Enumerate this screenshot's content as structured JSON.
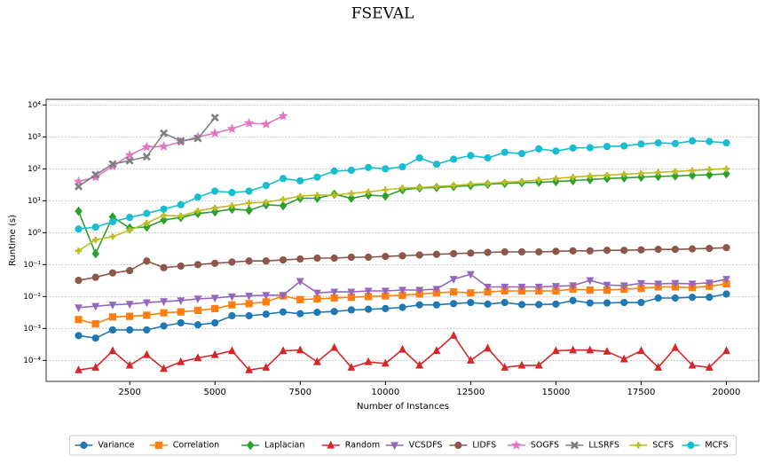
{
  "chart_data": {
    "type": "line",
    "title": "FSEVAL",
    "xlabel": "Number of Instances",
    "ylabel": "Runtime (s)",
    "x": [
      1000,
      1500,
      2000,
      2500,
      3000,
      3500,
      4000,
      4500,
      5000,
      5500,
      6000,
      6500,
      7000,
      7500,
      8000,
      8500,
      9000,
      9500,
      10000,
      10500,
      11000,
      11500,
      12000,
      12500,
      13000,
      13500,
      14000,
      14500,
      15000,
      15500,
      16000,
      16500,
      17000,
      17500,
      18000,
      18500,
      19000,
      19500,
      20000
    ],
    "xlim": [
      50,
      20950
    ],
    "xticks": [
      2500,
      5000,
      7500,
      10000,
      12500,
      15000,
      17500,
      20000
    ],
    "ylim": [
      2.2e-05,
      15000
    ],
    "log_y": true,
    "grid": true,
    "yticks": [
      {
        "value": 0.0001,
        "label": "10⁻⁴"
      },
      {
        "value": 0.001,
        "label": "10⁻³"
      },
      {
        "value": 0.01,
        "label": "10⁻²"
      },
      {
        "value": 0.1,
        "label": "10⁻¹"
      },
      {
        "value": 1,
        "label": "10⁰"
      },
      {
        "value": 10,
        "label": "10¹"
      },
      {
        "value": 100,
        "label": "10²"
      },
      {
        "value": 1000,
        "label": "10³"
      },
      {
        "value": 10000,
        "label": "10⁴"
      }
    ],
    "legend": "bottom",
    "series": [
      {
        "name": "Variance",
        "color": "#1f77b4",
        "marker": "circle",
        "values": [
          0.0006,
          0.0005,
          0.0009,
          0.0009,
          0.0009,
          0.0012,
          0.0015,
          0.0013,
          0.0015,
          0.0025,
          0.0025,
          0.0028,
          0.0033,
          0.0029,
          0.0032,
          0.0034,
          0.0038,
          0.004,
          0.0042,
          0.0046,
          0.0055,
          0.0055,
          0.006,
          0.0065,
          0.0058,
          0.0065,
          0.0056,
          0.0056,
          0.0058,
          0.0075,
          0.0063,
          0.0063,
          0.0065,
          0.0065,
          0.009,
          0.009,
          0.0095,
          0.0095,
          0.012
        ]
      },
      {
        "name": "Correlation",
        "color": "#ff7f0e",
        "marker": "square",
        "values": [
          0.0019,
          0.0014,
          0.0023,
          0.0024,
          0.0026,
          0.0031,
          0.0033,
          0.0037,
          0.0042,
          0.0055,
          0.006,
          0.0068,
          0.0105,
          0.008,
          0.0085,
          0.009,
          0.0095,
          0.01,
          0.0105,
          0.011,
          0.012,
          0.013,
          0.014,
          0.013,
          0.014,
          0.015,
          0.015,
          0.015,
          0.015,
          0.017,
          0.016,
          0.016,
          0.017,
          0.018,
          0.02,
          0.02,
          0.019,
          0.021,
          0.025
        ]
      },
      {
        "name": "Laplacian",
        "color": "#2ca02c",
        "marker": "diamond",
        "values": [
          4.7,
          0.22,
          3.1,
          1.4,
          1.5,
          2.5,
          3.0,
          4.0,
          4.5,
          5.5,
          5.0,
          7.5,
          7.0,
          12,
          12,
          16,
          12,
          15,
          14,
          22,
          25,
          26,
          28,
          30,
          33,
          35,
          37,
          38,
          40,
          43,
          46,
          50,
          52,
          55,
          58,
          60,
          63,
          65,
          70
        ]
      },
      {
        "name": "Random",
        "color": "#d62728",
        "marker": "triangle-up",
        "values": [
          5e-05,
          6e-05,
          0.0002,
          7e-05,
          0.00015,
          5.5e-05,
          9e-05,
          0.00012,
          0.00015,
          0.0002,
          5e-05,
          6e-05,
          0.0002,
          0.00021,
          9e-05,
          0.00025,
          6e-05,
          9e-05,
          8e-05,
          0.00022,
          7e-05,
          0.0002,
          0.0006,
          0.0001,
          0.00024,
          6e-05,
          7e-05,
          7e-05,
          0.0002,
          0.00021,
          0.00021,
          0.00019,
          0.00011,
          0.0002,
          6e-05,
          0.00025,
          7e-05,
          6e-05,
          0.0002
        ]
      },
      {
        "name": "VCSDFS",
        "color": "#9467bd",
        "marker": "triangle-down",
        "values": [
          0.0045,
          0.005,
          0.0055,
          0.0058,
          0.0065,
          0.007,
          0.0075,
          0.0085,
          0.009,
          0.01,
          0.0105,
          0.011,
          0.011,
          0.03,
          0.013,
          0.014,
          0.014,
          0.015,
          0.015,
          0.016,
          0.016,
          0.017,
          0.035,
          0.05,
          0.02,
          0.02,
          0.02,
          0.02,
          0.021,
          0.022,
          0.032,
          0.023,
          0.022,
          0.026,
          0.025,
          0.026,
          0.025,
          0.027,
          0.035
        ]
      },
      {
        "name": "LIDFS",
        "color": "#8c564b",
        "marker": "circle",
        "values": [
          0.032,
          0.04,
          0.055,
          0.065,
          0.13,
          0.08,
          0.09,
          0.1,
          0.11,
          0.12,
          0.13,
          0.13,
          0.14,
          0.15,
          0.16,
          0.16,
          0.17,
          0.17,
          0.18,
          0.19,
          0.2,
          0.21,
          0.22,
          0.23,
          0.24,
          0.25,
          0.25,
          0.25,
          0.26,
          0.27,
          0.27,
          0.28,
          0.28,
          0.29,
          0.3,
          0.3,
          0.31,
          0.32,
          0.34
        ]
      },
      {
        "name": "SOGFS",
        "color": "#e377c2",
        "marker": "star",
        "values": [
          40,
          55,
          120,
          270,
          480,
          500,
          700,
          1000,
          1300,
          1800,
          2700,
          2500,
          4500,
          null,
          null,
          null,
          null,
          null,
          null,
          null,
          null,
          null,
          null,
          null,
          null,
          null,
          null,
          null,
          null,
          null,
          null,
          null,
          null,
          null,
          null,
          null,
          null,
          null,
          null
        ]
      },
      {
        "name": "LLSRFS",
        "color": "#7f7f7f",
        "marker": "x",
        "values": [
          28,
          65,
          140,
          180,
          240,
          1300,
          750,
          900,
          4000,
          null,
          null,
          null,
          null,
          null,
          null,
          null,
          null,
          null,
          null,
          null,
          null,
          null,
          null,
          null,
          null,
          null,
          null,
          null,
          null,
          null,
          null,
          null,
          null,
          null,
          null,
          null,
          null,
          null,
          null
        ]
      },
      {
        "name": "SCFS",
        "color": "#bcbd22",
        "marker": "plus",
        "values": [
          0.27,
          0.6,
          0.75,
          1.2,
          2.0,
          3.5,
          3.3,
          4.8,
          6,
          7,
          8.5,
          9,
          11,
          14,
          15,
          15,
          17,
          19,
          22,
          25,
          26,
          28,
          30,
          33,
          35,
          38,
          40,
          45,
          50,
          55,
          60,
          63,
          68,
          72,
          78,
          82,
          88,
          95,
          100
        ]
      },
      {
        "name": "MCFS",
        "color": "#17becf",
        "marker": "circle",
        "values": [
          1.3,
          1.5,
          2.2,
          3,
          4,
          5.5,
          7.5,
          13,
          20,
          18,
          20,
          30,
          50,
          42,
          55,
          85,
          90,
          110,
          100,
          115,
          220,
          140,
          200,
          260,
          220,
          330,
          300,
          420,
          360,
          450,
          460,
          500,
          520,
          600,
          650,
          620,
          750,
          720,
          650
        ]
      }
    ]
  }
}
